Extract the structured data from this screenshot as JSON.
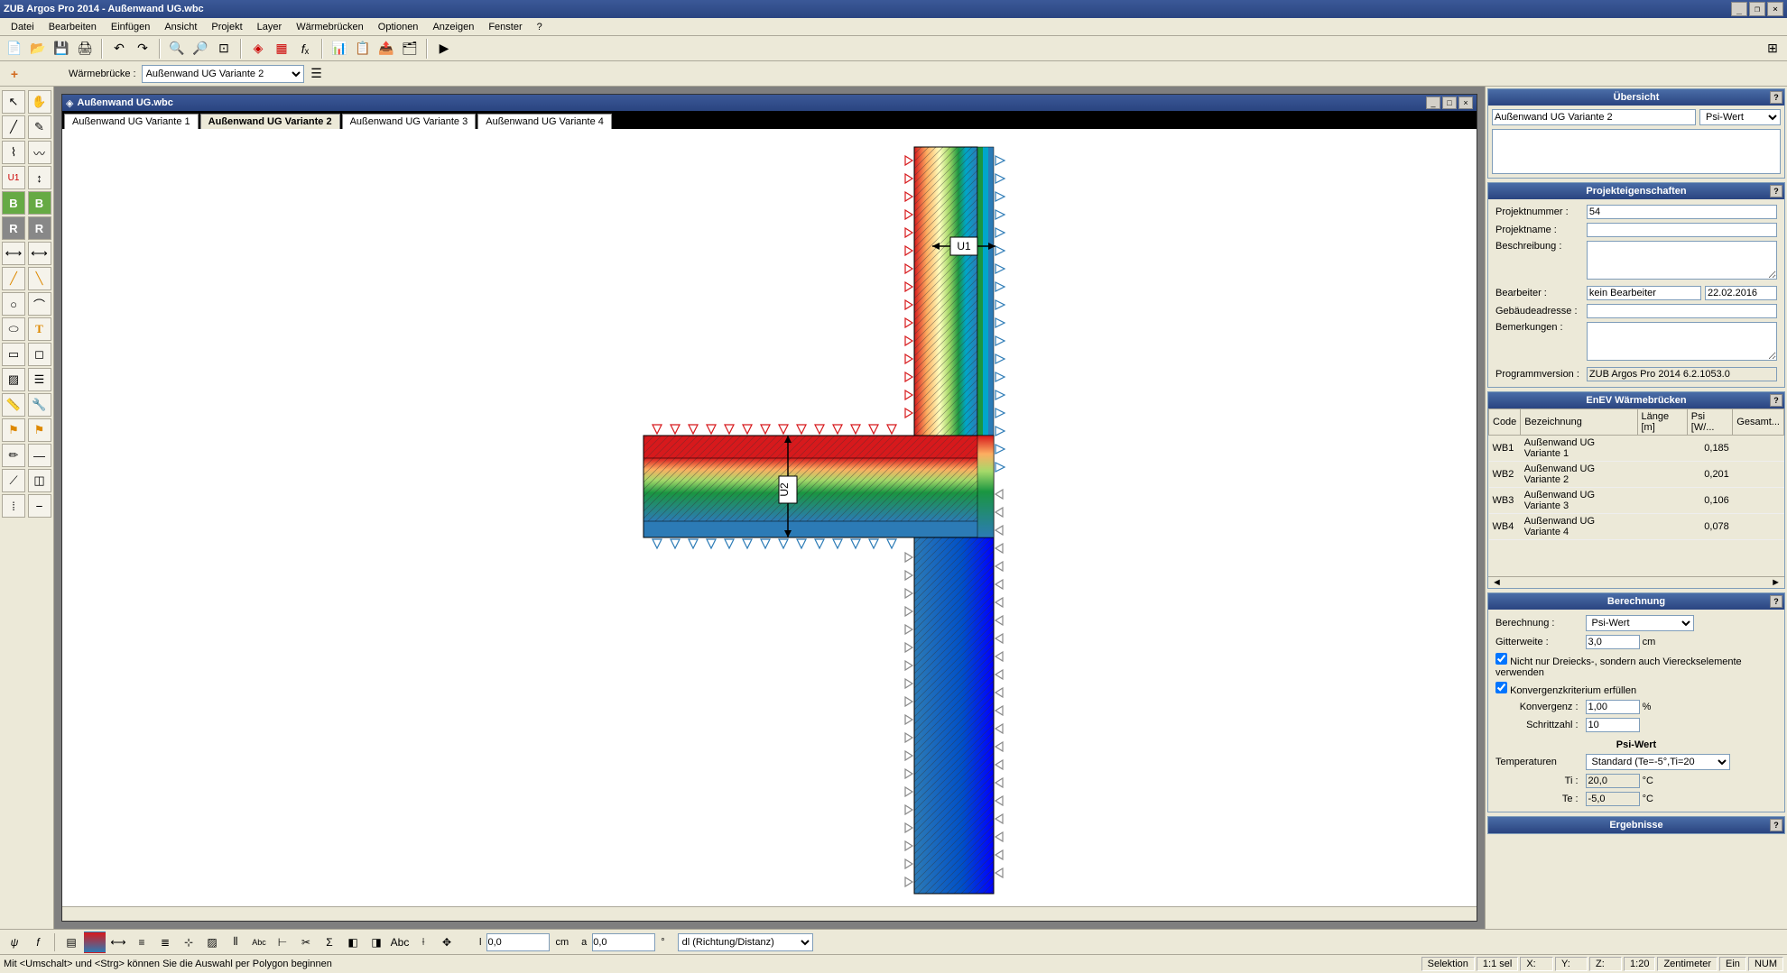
{
  "app": {
    "title": "ZUB Argos Pro 2014 - Außenwand UG.wbc",
    "menus": [
      "Datei",
      "Bearbeiten",
      "Einfügen",
      "Ansicht",
      "Projekt",
      "Layer",
      "Wärmebrücken",
      "Optionen",
      "Anzeigen",
      "Fenster",
      "?"
    ]
  },
  "warmebrucke": {
    "label": "Wärmebrücke :",
    "value": "Außenwand UG Variante 2"
  },
  "doc": {
    "title": "Außenwand UG.wbc",
    "tabs": [
      "Außenwand UG Variante 1",
      "Außenwand UG Variante 2",
      "Außenwand UG Variante 3",
      "Außenwand UG Variante 4"
    ],
    "active_tab": 1
  },
  "diagram": {
    "labels": {
      "u1": "U1",
      "u2": "U2"
    },
    "thermal_colors": [
      "#d7191c",
      "#fdae61",
      "#ffffbf",
      "#a6d96a",
      "#1a9641",
      "#00a6ca",
      "#2c7bb6",
      "#0000ff"
    ],
    "arrow_colors": {
      "hot": "#d7191c",
      "cold": "#2c7bb6",
      "neutral": "#888888"
    },
    "background": "#ffffff",
    "hatch_color": "#333333"
  },
  "overview": {
    "title": "Übersicht",
    "item": "Außenwand UG Variante 2",
    "metric": "Psi-Wert"
  },
  "project": {
    "title": "Projekteigenschaften",
    "labels": {
      "nummer": "Projektnummer :",
      "name": "Projektname :",
      "beschreibung": "Beschreibung :",
      "bearbeiter": "Bearbeiter :",
      "adresse": "Gebäudeadresse :",
      "bemerkungen": "Bemerkungen :",
      "version": "Programmversion :"
    },
    "values": {
      "nummer": "54",
      "name": "",
      "beschreibung": "",
      "bearbeiter": "kein Bearbeiter",
      "datum": "22.02.2016",
      "adresse": "",
      "bemerkungen": "",
      "version": "ZUB Argos Pro 2014 6.2.1053.0"
    }
  },
  "enev": {
    "title": "EnEV Wärmebrücken",
    "columns": [
      "Code",
      "Bezeichnung",
      "Länge [m]",
      "Psi [W/...",
      "Gesamt..."
    ],
    "rows": [
      {
        "code": "WB1",
        "bez": "Außenwand UG Variante 1",
        "laenge": "",
        "psi": "0,185",
        "ges": ""
      },
      {
        "code": "WB2",
        "bez": "Außenwand UG Variante 2",
        "laenge": "",
        "psi": "0,201",
        "ges": ""
      },
      {
        "code": "WB3",
        "bez": "Außenwand UG Variante 3",
        "laenge": "",
        "psi": "0,106",
        "ges": ""
      },
      {
        "code": "WB4",
        "bez": "Außenwand UG Variante 4",
        "laenge": "",
        "psi": "0,078",
        "ges": ""
      }
    ]
  },
  "calc": {
    "title": "Berechnung",
    "labels": {
      "berechnung": "Berechnung :",
      "gitter": "Gitterweite :",
      "check1": "Nicht nur Dreiecks-, sondern auch Viereckselemente verwenden",
      "check2": "Konvergenzkriterium erfüllen",
      "konvergenz": "Konvergenz :",
      "schritt": "Schrittzahl :",
      "psi_head": "Psi-Wert",
      "temp": "Temperaturen",
      "ti": "Ti :",
      "te": "Te :"
    },
    "values": {
      "berechnung": "Psi-Wert",
      "gitter": "3,0",
      "gitter_unit": "cm",
      "check1": true,
      "check2": true,
      "konvergenz": "1,00",
      "konvergenz_unit": "%",
      "schritt": "10",
      "temp": "Standard (Te=-5°,Ti=20",
      "ti": "20,0",
      "te": "-5,0",
      "temp_unit": "°C"
    }
  },
  "results": {
    "title": "Ergebnisse"
  },
  "bottombar": {
    "l_label": "l",
    "l_value": "0,0",
    "l_unit": "cm",
    "a_label": "a",
    "a_value": "0,0",
    "a_unit": "°",
    "method": "dl (Richtung/Distanz)"
  },
  "status": {
    "hint": "Mit <Umschalt> und <Strg> können Sie die Auswahl per Polygon beginnen",
    "selektion": "Selektion",
    "sel": "1:1 sel",
    "x": "X:",
    "y": "Y:",
    "z": "Z:",
    "scale": "1:20",
    "unit": "Zentimeter",
    "ein": "Ein",
    "num": "NUM"
  }
}
